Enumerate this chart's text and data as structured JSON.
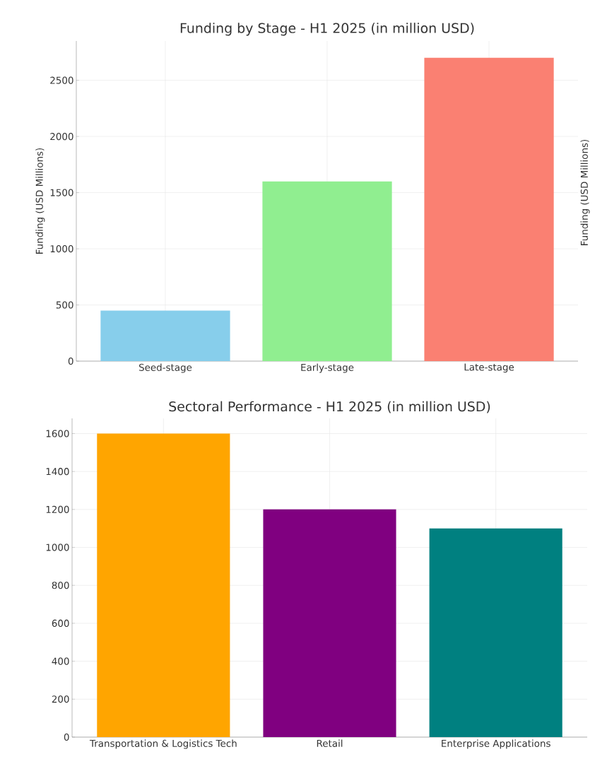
{
  "chart_data": [
    {
      "type": "bar",
      "title": "Funding by Stage - H1 2025 (in million USD)",
      "ylabel": "Funding (USD Millions)",
      "y2label": "Funding (USD Millions)",
      "categories": [
        "Seed-stage",
        "Early-stage",
        "Late-stage"
      ],
      "values": [
        450,
        1600,
        2700
      ],
      "colors": [
        "#87ceeb",
        "#90ee90",
        "#fa8072"
      ],
      "ylim": [
        0,
        2850
      ],
      "yticks": [
        0,
        500,
        1000,
        1500,
        2000,
        2500
      ],
      "grid": true
    },
    {
      "type": "bar",
      "title": "Sectoral Performance - H1 2025 (in million USD)",
      "categories": [
        "Transportation & Logistics Tech",
        "Retail",
        "Enterprise Applications"
      ],
      "values": [
        1600,
        1200,
        1100
      ],
      "colors": [
        "#ffa500",
        "#800080",
        "#008080"
      ],
      "ylim": [
        0,
        1680
      ],
      "yticks": [
        0,
        200,
        400,
        600,
        800,
        1000,
        1200,
        1400,
        1600
      ],
      "grid": true
    }
  ]
}
